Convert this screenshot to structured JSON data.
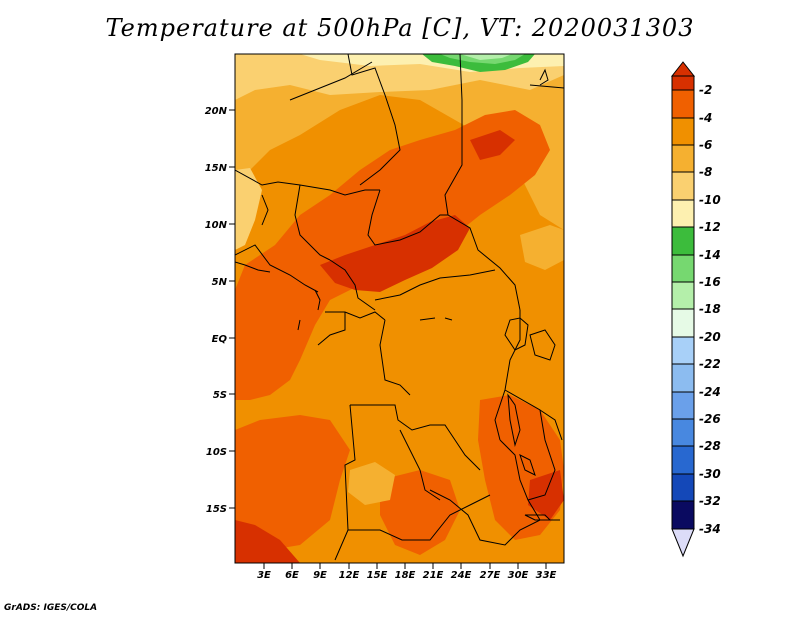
{
  "title": "Temperature at 500hPa [C], VT: 2020031303",
  "credit": "GrADS: IGES/COLA",
  "axes": {
    "lon_labels": [
      "3E",
      "6E",
      "9E",
      "12E",
      "15E",
      "18E",
      "21E",
      "24E",
      "27E",
      "30E",
      "33E"
    ],
    "lat_labels": [
      "20N",
      "15N",
      "10N",
      "5N",
      "EQ",
      "5S",
      "10S",
      "15S"
    ]
  },
  "colorbar": {
    "labels": [
      "-2",
      "-4",
      "-6",
      "-8",
      "-10",
      "-12",
      "-14",
      "-16",
      "-18",
      "-20",
      "-22",
      "-24",
      "-26",
      "-28",
      "-30",
      "-32",
      "-34"
    ],
    "colors": [
      "#d73000",
      "#f06000",
      "#f09000",
      "#f5b030",
      "#fad070",
      "#fdf0b0",
      "#3cbc3c",
      "#76d870",
      "#b4efaa",
      "#e6fae6",
      "#a8d0f8",
      "#8cbcf0",
      "#6aa0ea",
      "#4888e0",
      "#2868d0",
      "#1448b8",
      "#0a2a90",
      "#0a0a60",
      "#dcdcf8"
    ]
  },
  "map": {
    "colors": {
      "t_-2": "#d73000",
      "t_-4": "#f06000",
      "t_-6": "#f09000",
      "t_-8": "#f5b030",
      "t_-10": "#fad070",
      "t_-12": "#fdf0b0",
      "t_-14": "#3cbc3c",
      "t_-16": "#76d870",
      "t_-18": "#b4efaa",
      "t_-20": "#e6fae6",
      "border": "#000000"
    }
  }
}
